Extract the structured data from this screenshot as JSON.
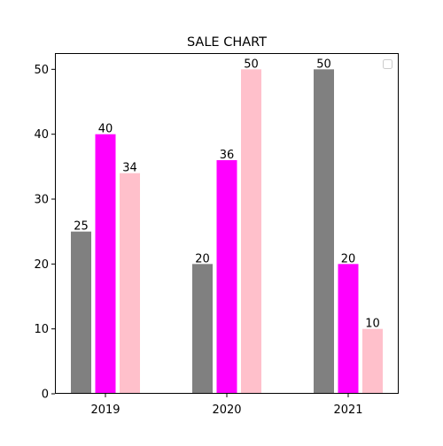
{
  "chart_data": {
    "type": "bar",
    "title": "SALE CHART",
    "xlabel": "",
    "ylabel": "",
    "categories": [
      "2019",
      "2020",
      "2021"
    ],
    "series": [
      {
        "color": "#808080",
        "values": [
          25,
          20,
          50
        ]
      },
      {
        "color": "#ff00ff",
        "values": [
          40,
          36,
          20
        ]
      },
      {
        "color": "#ffc0cb",
        "values": [
          34,
          50,
          10
        ]
      }
    ],
    "ylim": [
      0,
      52.5
    ],
    "yticks": [
      0,
      10,
      20,
      30,
      40,
      50
    ],
    "legend": {
      "placement": "upper-right",
      "entries": []
    },
    "grid": false
  }
}
